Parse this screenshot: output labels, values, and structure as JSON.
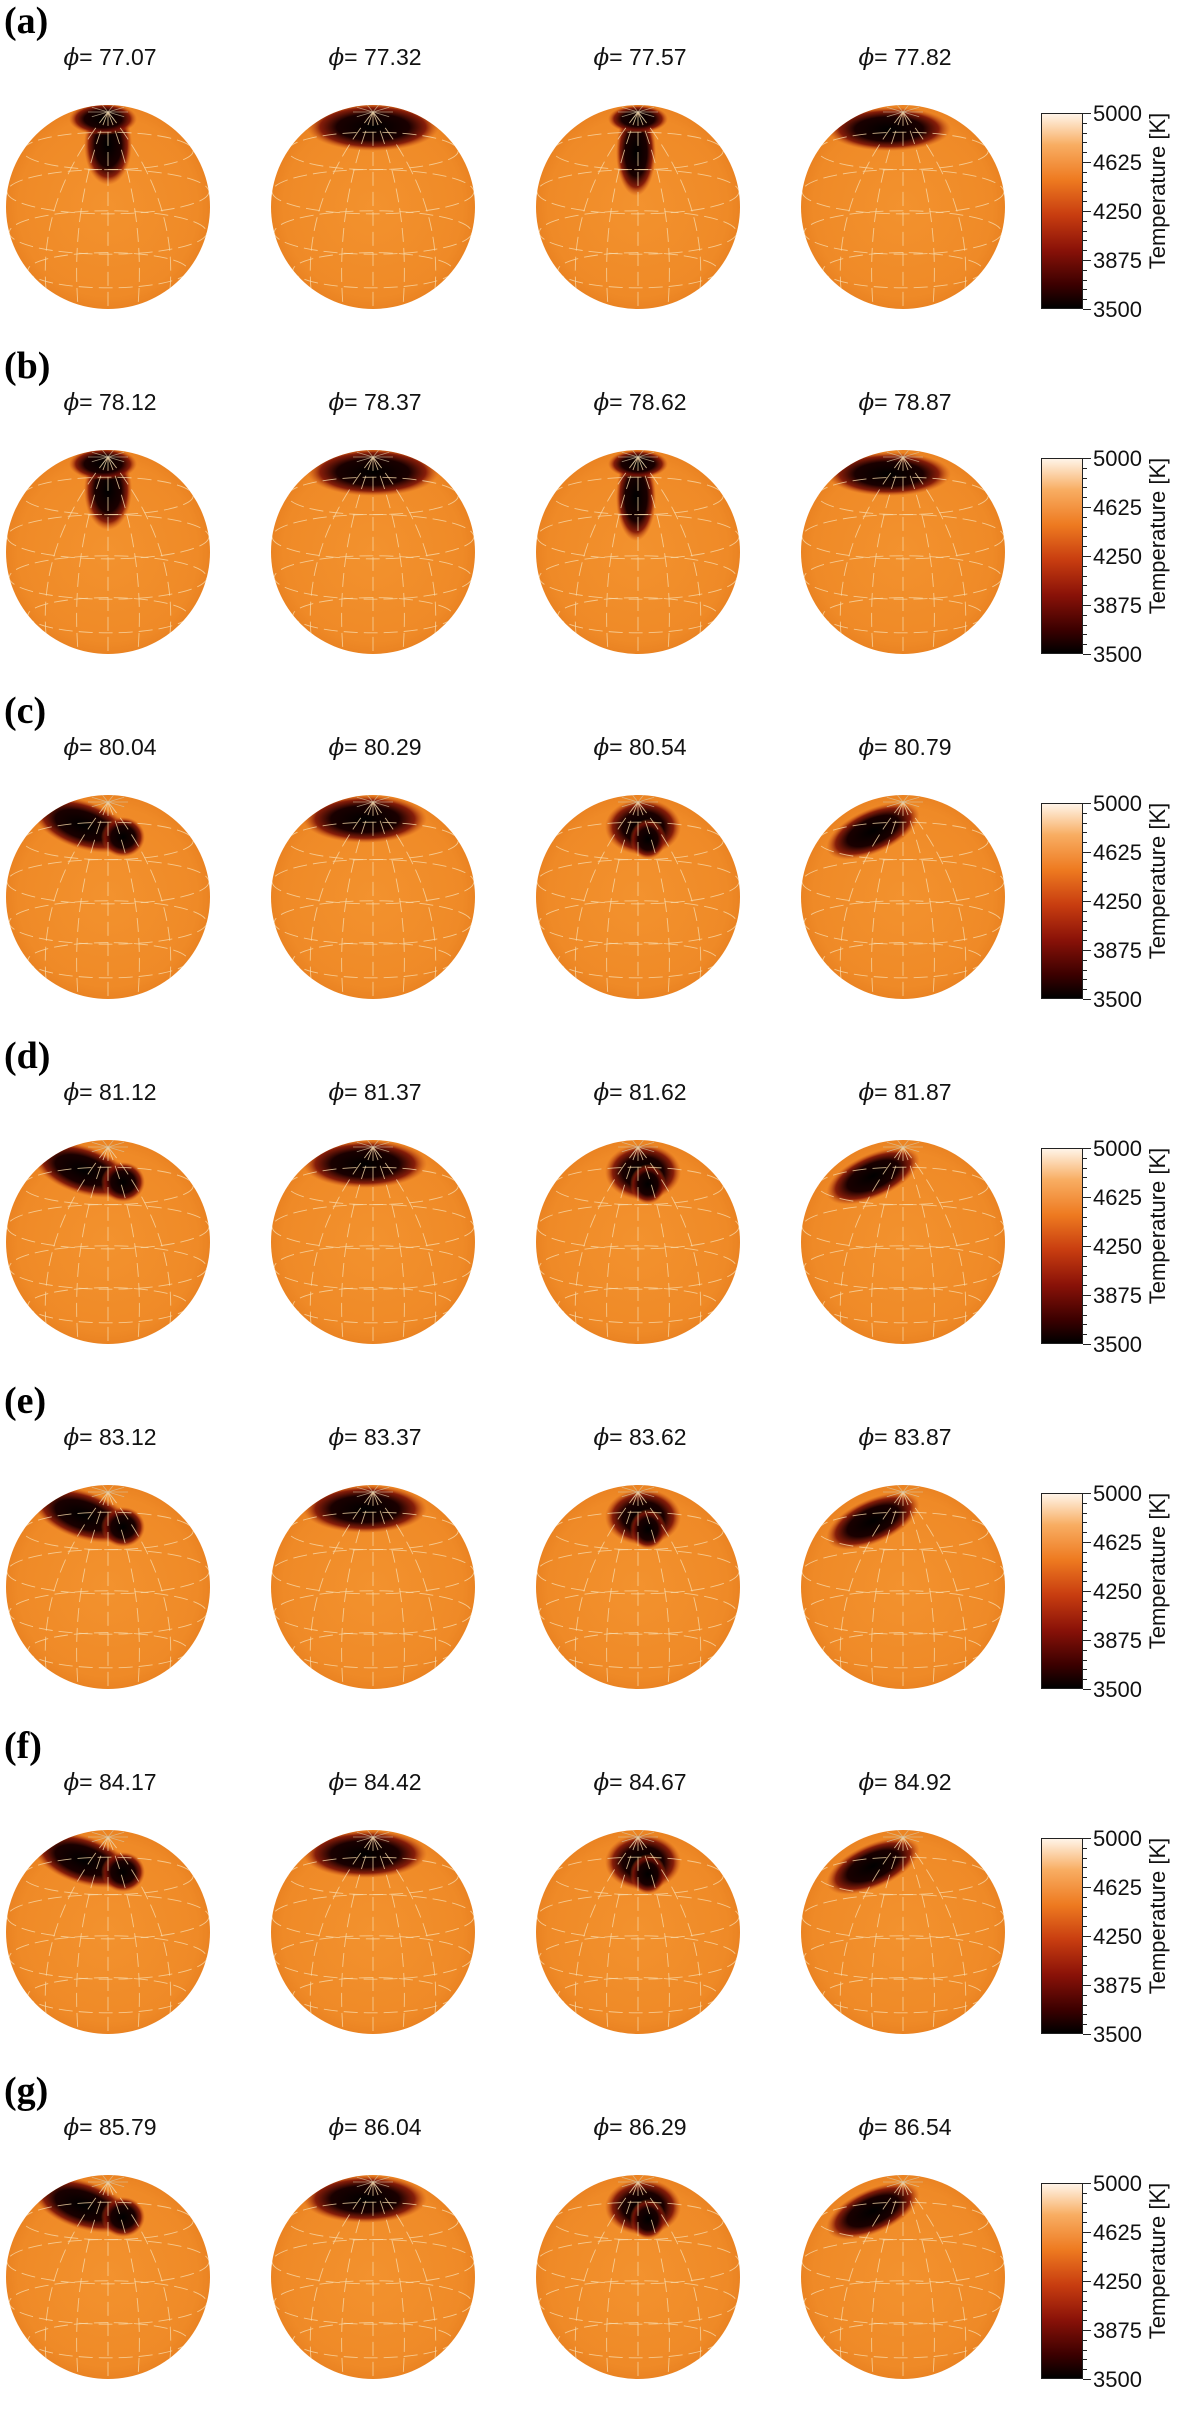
{
  "colorbar": {
    "title": "Temperature [K]",
    "ticks": [
      "5000",
      "4625",
      "4250",
      "3875",
      "3500"
    ],
    "colors": [
      "#000000",
      "#3b0000",
      "#8a1208",
      "#c83d10",
      "#ee7a20",
      "#f8ad62",
      "#fff4e8"
    ]
  },
  "phi_symbol": "ϕ",
  "panels": [
    {
      "label": "(a)",
      "phases": [
        "77.07",
        "77.32",
        "77.57",
        "77.82"
      ]
    },
    {
      "label": "(b)",
      "phases": [
        "78.12",
        "78.37",
        "78.62",
        "78.87"
      ]
    },
    {
      "label": "(c)",
      "phases": [
        "80.04",
        "80.29",
        "80.54",
        "80.79"
      ]
    },
    {
      "label": "(d)",
      "phases": [
        "81.12",
        "81.37",
        "81.62",
        "81.87"
      ]
    },
    {
      "label": "(e)",
      "phases": [
        "83.12",
        "83.37",
        "83.62",
        "83.87"
      ]
    },
    {
      "label": "(f)",
      "phases": [
        "84.17",
        "84.42",
        "84.67",
        "84.92"
      ]
    },
    {
      "label": "(g)",
      "phases": [
        "85.79",
        "86.04",
        "86.29",
        "86.54"
      ]
    }
  ]
}
